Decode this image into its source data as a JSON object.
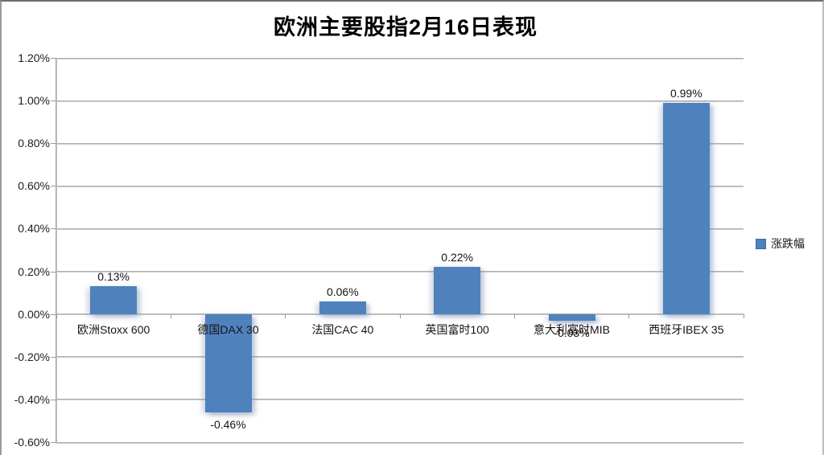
{
  "chart_data": {
    "type": "bar",
    "title": "欧洲主要股指2月16日表现",
    "categories": [
      "欧洲Stoxx 600",
      "德国DAX 30",
      "法国CAC 40",
      "英国富时100",
      "意大利富时MIB",
      "西班牙IBEX 35"
    ],
    "series": [
      {
        "name": "涨跌幅",
        "values": [
          0.13,
          -0.46,
          0.06,
          0.22,
          -0.03,
          0.99
        ],
        "data_labels": [
          "0.13%",
          "-0.46%",
          "0.06%",
          "0.22%",
          "-0.03%",
          "0.99%"
        ],
        "color": "#4F81BD"
      }
    ],
    "xlabel": "",
    "ylabel": "",
    "ylim": [
      -0.6,
      1.2
    ],
    "grid": true,
    "legend_position": "right",
    "y_ticks": [
      {
        "value": 1.2,
        "label": "1.20%"
      },
      {
        "value": 1.0,
        "label": "1.00%"
      },
      {
        "value": 0.8,
        "label": "0.80%"
      },
      {
        "value": 0.6,
        "label": "0.60%"
      },
      {
        "value": 0.4,
        "label": "0.40%"
      },
      {
        "value": 0.2,
        "label": "0.20%"
      },
      {
        "value": 0.0,
        "label": "0.00%"
      },
      {
        "value": -0.2,
        "label": "-0.20%"
      },
      {
        "value": -0.4,
        "label": "-0.40%"
      },
      {
        "value": -0.6,
        "label": "-0.60%"
      }
    ]
  },
  "colors": {
    "bar": "#4F81BD",
    "gridline": "#a6a6a6",
    "text": "#141414",
    "background": "#ffffff"
  }
}
